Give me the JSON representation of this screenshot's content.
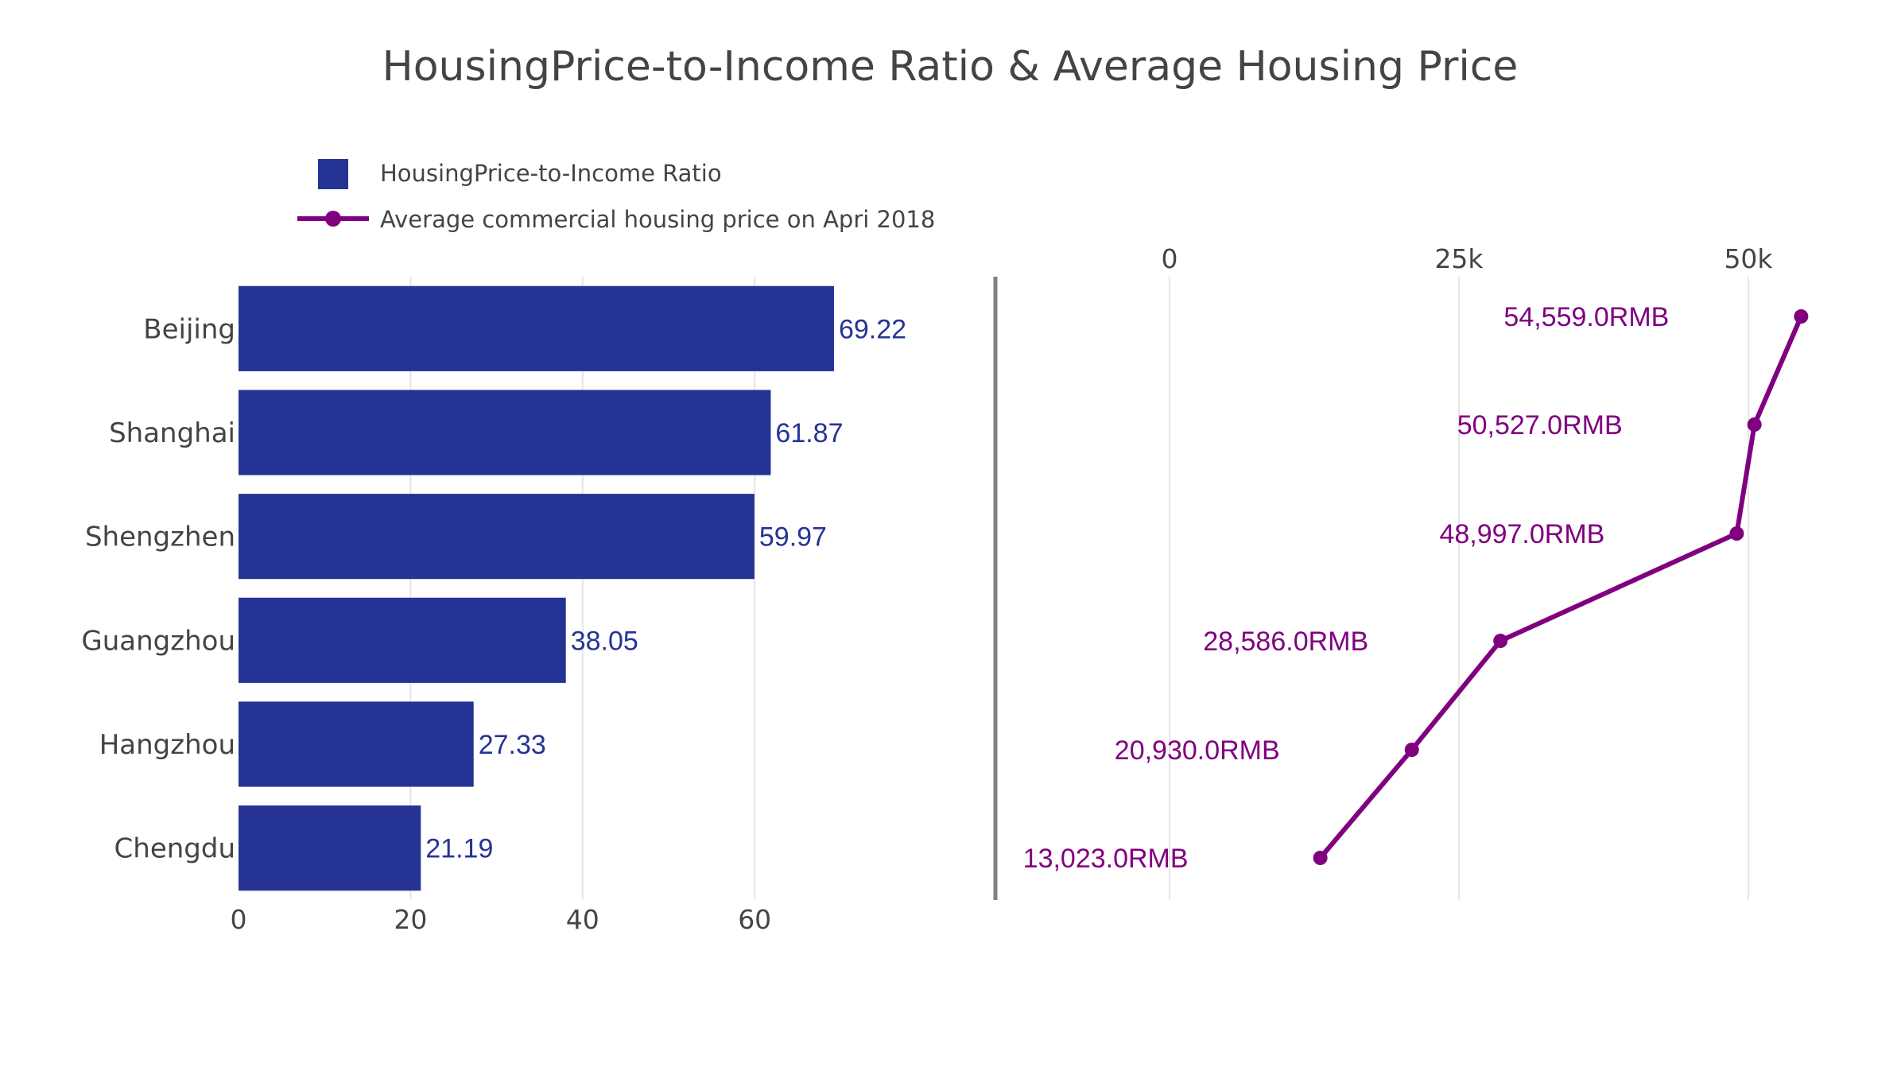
{
  "title": "HousingPrice-to-Income Ratio & Average Housing Price",
  "colors": {
    "bar": "#253494",
    "line": "#800080",
    "grid": "#e6e6e6",
    "axis_text": "#444444",
    "divider": "#808080"
  },
  "legend": {
    "placement": "top-left",
    "items": [
      {
        "name": "HousingPrice-to-Income Ratio",
        "symbol": "bar"
      },
      {
        "name": "Average commercial housing price on Apri 2018",
        "symbol": "line-marker"
      }
    ]
  },
  "chart_data": [
    {
      "type": "bar",
      "orientation": "horizontal",
      "series_name": "HousingPrice-to-Income Ratio",
      "categories": [
        "Beijing",
        "Shanghai",
        "Shengzhen",
        "Guangzhou",
        "Hangzhou",
        "Chengdu"
      ],
      "values": [
        69.22,
        61.87,
        59.97,
        38.05,
        27.33,
        21.19
      ],
      "data_labels": [
        "69.22",
        "61.87",
        "59.97",
        "38.05",
        "27.33",
        "21.19"
      ],
      "xticks": [
        0,
        20,
        40,
        60
      ],
      "xtick_labels": [
        "0",
        "20",
        "40",
        "60"
      ],
      "xlim": [
        0,
        80
      ],
      "grid": true
    },
    {
      "type": "line",
      "orientation": "horizontal",
      "series_name": "Average commercial housing price on Apri 2018",
      "categories": [
        "Beijing",
        "Shanghai",
        "Shengzhen",
        "Guangzhou",
        "Hangzhou",
        "Chengdu"
      ],
      "values": [
        54559,
        50527,
        48997,
        28586,
        20930,
        13023
      ],
      "data_labels": [
        "54,559.0RMB",
        "50,527.0RMB",
        "48,997.0RMB",
        "28,586.0RMB",
        "20,930.0RMB",
        "13,023.0RMB"
      ],
      "xticks": [
        0,
        25000,
        50000
      ],
      "xtick_labels": [
        "0",
        "25k",
        "50k"
      ],
      "xaxis_side": "top",
      "xlim": [
        -15000,
        57000
      ],
      "grid": true
    }
  ]
}
